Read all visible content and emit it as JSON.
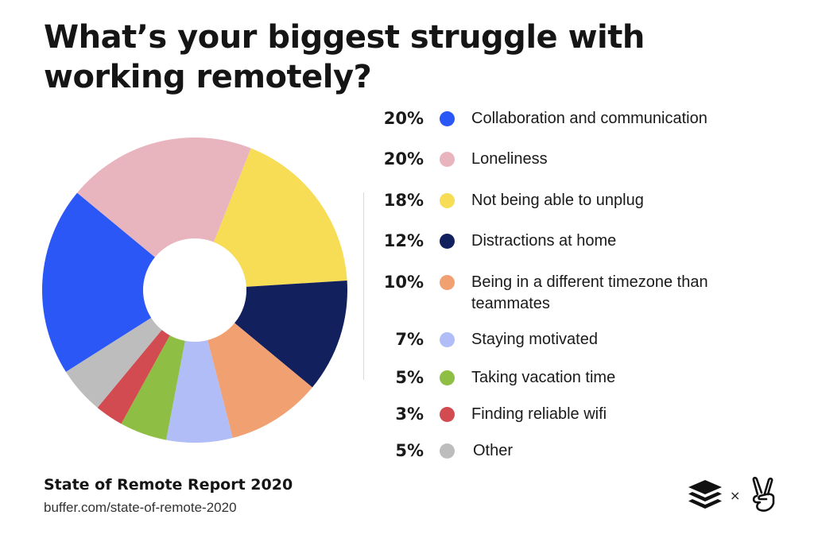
{
  "page": {
    "title": "What’s your biggest struggle with working remotely?"
  },
  "footer": {
    "report_title": "State of Remote Report 2020",
    "url": "buffer.com/state-of-remote-2020",
    "times_sign": "×",
    "logos": [
      "buffer-stack-logo",
      "angellist-peace-hand-logo"
    ]
  },
  "chart_data": {
    "type": "pie",
    "style": "donut",
    "title": "What’s your biggest struggle with working remotely?",
    "legend_position": "right",
    "unit": "%",
    "slices": [
      {
        "label": "Collaboration and communication",
        "value": 20,
        "display": "20%",
        "color": "#2a57f5"
      },
      {
        "label": "Loneliness",
        "value": 20,
        "display": "20%",
        "color": "#e8b4bd"
      },
      {
        "label": "Not being able to unplug",
        "value": 18,
        "display": "18%",
        "color": "#f7dc55"
      },
      {
        "label": "Distractions at home",
        "value": 12,
        "display": "12%",
        "color": "#12205e"
      },
      {
        "label": "Being in a different timezone than teammates",
        "value": 10,
        "display": "10%",
        "color": "#f1a072"
      },
      {
        "label": "Staying motivated",
        "value": 7,
        "display": "7%",
        "color": "#b0bdf6"
      },
      {
        "label": "Taking vacation time",
        "value": 5,
        "display": "5%",
        "color": "#8fbe44"
      },
      {
        "label": "Finding reliable wifi",
        "value": 3,
        "display": "3%",
        "color": "#d14b50"
      },
      {
        "label": "Other",
        "value": 5,
        "display": "5%",
        "color": "#bdbdbd"
      }
    ]
  }
}
